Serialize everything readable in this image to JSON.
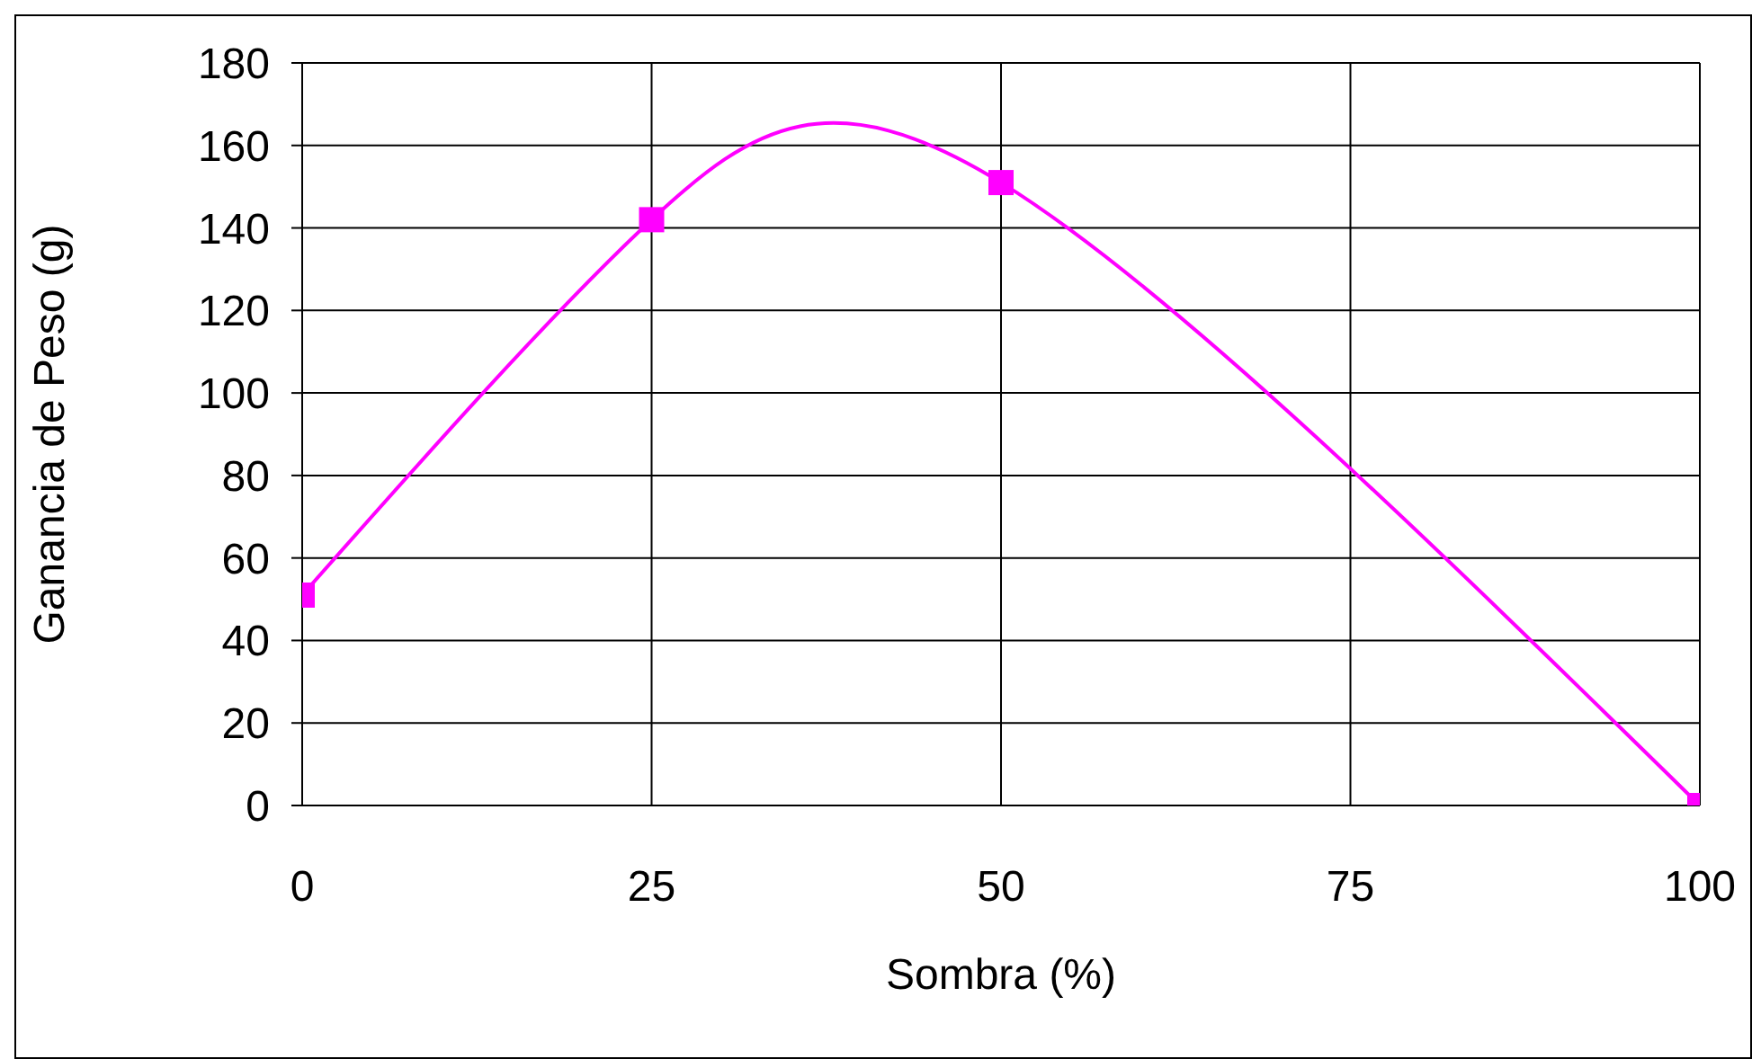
{
  "chart_data": {
    "type": "line",
    "xlabel": "Sombra (%)",
    "ylabel": "Ganancia de Peso (g)",
    "x": [
      0,
      25,
      50,
      100
    ],
    "series": [
      {
        "color": "#ff00ff",
        "values": [
          51,
          142,
          151,
          0
        ]
      }
    ],
    "xlim": [
      0,
      100
    ],
    "xticks": [
      0,
      25,
      50,
      75,
      100
    ],
    "ylim": [
      0,
      180
    ],
    "yticks": [
      0,
      20,
      40,
      60,
      80,
      100,
      120,
      140,
      160,
      180
    ],
    "grid": true,
    "legend": false,
    "marker": "square",
    "line_style": "solid"
  }
}
